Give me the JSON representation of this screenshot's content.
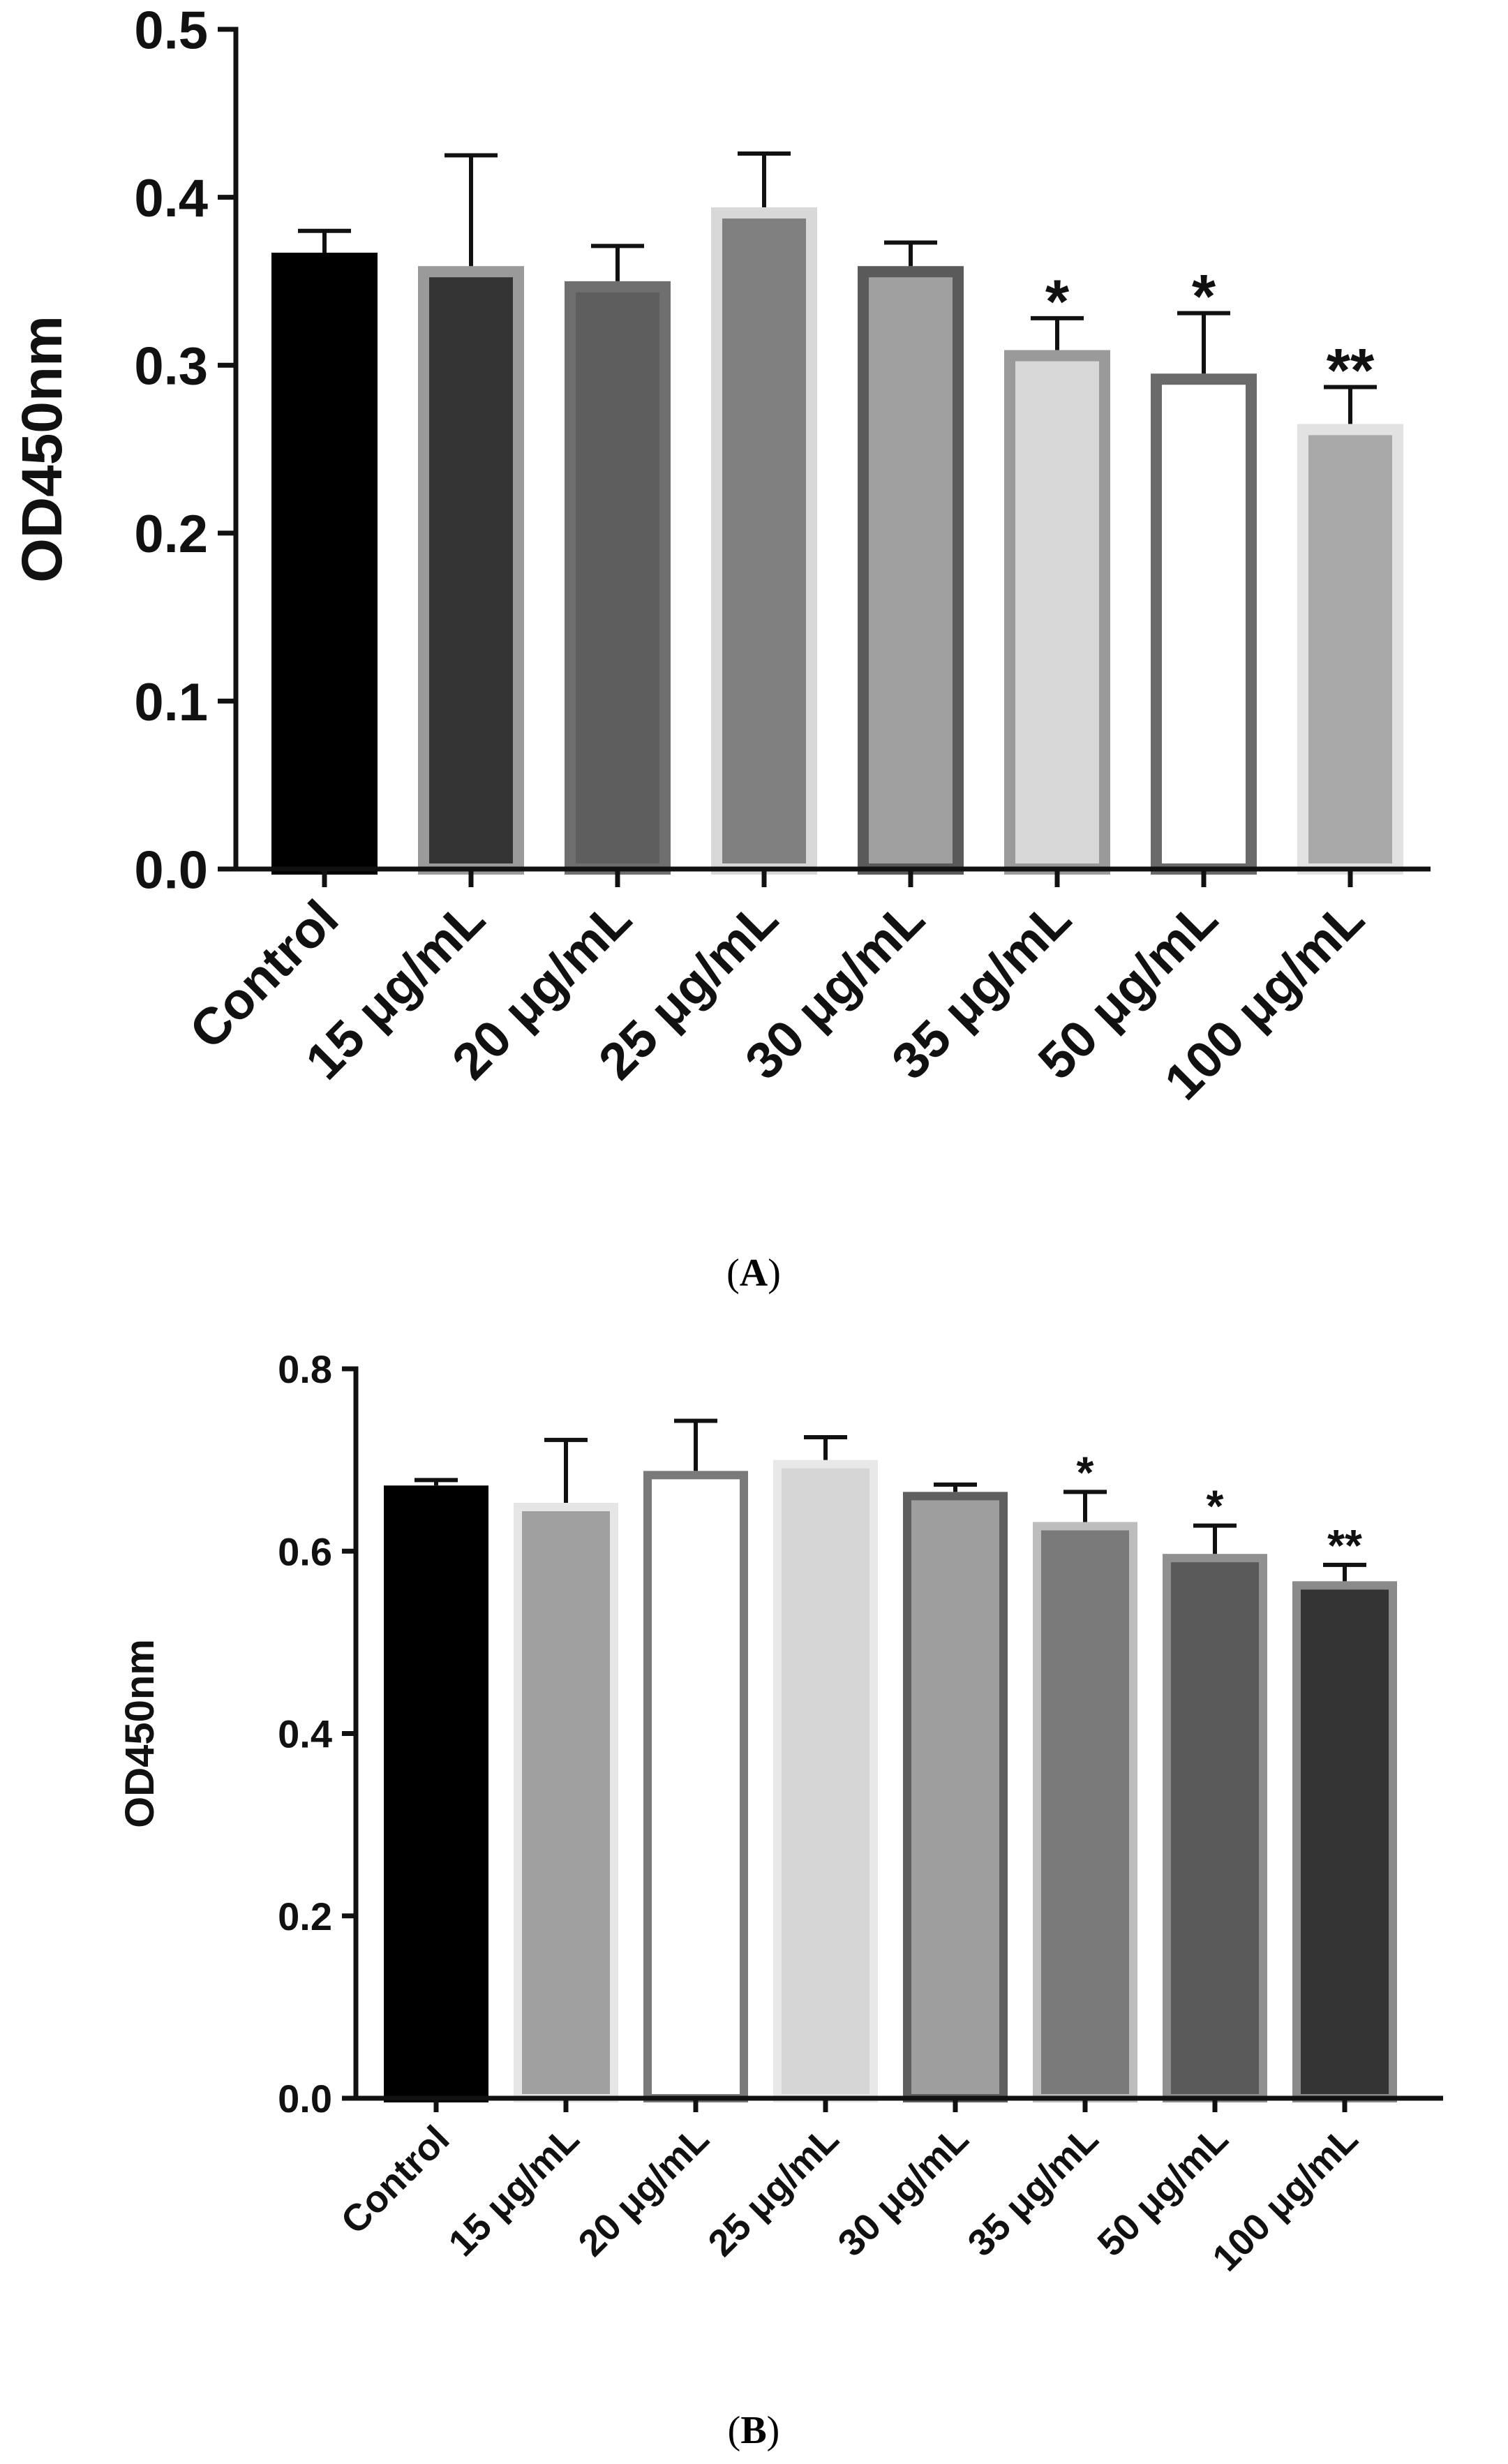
{
  "chart_data": [
    {
      "panel": "(A)",
      "panel_letter": "A",
      "type": "bar",
      "title": "",
      "xlabel": "",
      "ylabel": "OD450nm",
      "ylim": [
        0,
        0.5
      ],
      "yticks": [
        "0.0",
        "0.1",
        "0.2",
        "0.3",
        "0.4",
        "0.5"
      ],
      "categories": [
        "Control",
        "15 μg/mL",
        "20 μg/mL",
        "25 μg/mL",
        "30 μg/mL",
        "35 μg/mL",
        "50 μg/mL",
        "100 μg/mL"
      ],
      "values": [
        0.367,
        0.359,
        0.35,
        0.394,
        0.359,
        0.309,
        0.295,
        0.265
      ],
      "errors": [
        0.013,
        0.066,
        0.021,
        0.032,
        0.014,
        0.019,
        0.036,
        0.022
      ],
      "significance": [
        "",
        "",
        "",
        "",
        "",
        "*",
        "*",
        "**"
      ],
      "fill_colors": [
        "#000000",
        "#333333",
        "#5e5e5e",
        "#808080",
        "#a0a0a0",
        "#d8d8d8",
        "#ffffff",
        "#a8a8a8"
      ],
      "edge_colors": [
        "#000000",
        "#9a9a9a",
        "#6f6f6f",
        "#d8d8d8",
        "#5a5a5a",
        "#9a9a9a",
        "#6a6a6a",
        "#e2e2e2"
      ],
      "grid": false
    },
    {
      "panel": "(B)",
      "panel_letter": "B",
      "type": "bar",
      "title": "",
      "xlabel": "",
      "ylabel": "OD450nm",
      "ylim": [
        0,
        0.8
      ],
      "yticks": [
        "0.0",
        "0.2",
        "0.4",
        "0.6",
        "0.8"
      ],
      "categories": [
        "Control",
        "15 μg/mL",
        "20 μg/mL",
        "25 μg/mL",
        "30 μg/mL",
        "35 μg/mL",
        "50 μg/mL",
        "100 μg/mL"
      ],
      "values": [
        0.672,
        0.653,
        0.688,
        0.7,
        0.665,
        0.632,
        0.597,
        0.567
      ],
      "errors": [
        0.006,
        0.069,
        0.055,
        0.025,
        0.008,
        0.033,
        0.031,
        0.018
      ],
      "significance": [
        "",
        "",
        "",
        "",
        "",
        "*",
        "*",
        "**"
      ],
      "fill_colors": [
        "#000000",
        "#a0a0a0",
        "#ffffff",
        "#d6d6d6",
        "#9e9e9e",
        "#7a7a7a",
        "#5a5a5a",
        "#333333"
      ],
      "edge_colors": [
        "#000000",
        "#e6e6e6",
        "#7a7a7a",
        "#e8e8e8",
        "#5f5f5f",
        "#bdbdbd",
        "#909090",
        "#8a8a8a"
      ],
      "grid": false
    }
  ]
}
